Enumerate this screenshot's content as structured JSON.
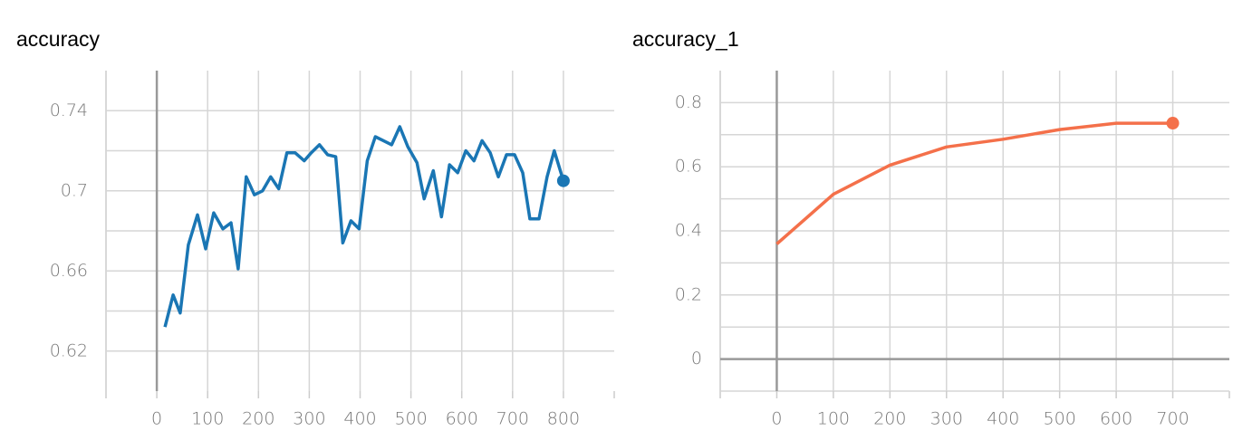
{
  "chart_data": [
    {
      "type": "line",
      "title": "accuracy",
      "color": "#1a76b4",
      "x": [
        16,
        32,
        46,
        62,
        80,
        96,
        112,
        130,
        146,
        160,
        176,
        192,
        208,
        224,
        240,
        256,
        272,
        290,
        304,
        320,
        336,
        352,
        366,
        382,
        398,
        414,
        430,
        446,
        462,
        478,
        494,
        512,
        526,
        544,
        560,
        576,
        592,
        608,
        624,
        640,
        656,
        672,
        688,
        704,
        720,
        734,
        752,
        768,
        782,
        800
      ],
      "values": [
        0.632,
        0.648,
        0.639,
        0.673,
        0.688,
        0.671,
        0.689,
        0.681,
        0.684,
        0.661,
        0.707,
        0.698,
        0.7,
        0.707,
        0.701,
        0.719,
        0.719,
        0.715,
        0.719,
        0.723,
        0.718,
        0.717,
        0.674,
        0.685,
        0.681,
        0.715,
        0.727,
        0.725,
        0.723,
        0.732,
        0.722,
        0.714,
        0.696,
        0.71,
        0.687,
        0.713,
        0.709,
        0.72,
        0.715,
        0.725,
        0.719,
        0.707,
        0.718,
        0.718,
        0.709,
        0.686,
        0.686,
        0.707,
        0.72,
        0.705
      ],
      "xlim": [
        -100,
        900
      ],
      "xticks": [
        0,
        100,
        200,
        300,
        400,
        500,
        600,
        700,
        800
      ],
      "ylim": [
        0.6,
        0.76
      ],
      "yticks": [
        0.62,
        0.66,
        0.7,
        0.74
      ],
      "y_minor_ticks": [
        0.64,
        0.68,
        0.72
      ],
      "grid": true
    },
    {
      "type": "line",
      "title": "accuracy_1",
      "color": "#f4704a",
      "x": [
        0,
        100,
        200,
        300,
        400,
        500,
        600,
        700
      ],
      "values": [
        0.359,
        0.514,
        0.605,
        0.662,
        0.686,
        0.716,
        0.736,
        0.736
      ],
      "xlim": [
        -100,
        800
      ],
      "xticks": [
        0,
        100,
        200,
        300,
        400,
        500,
        600,
        700
      ],
      "ylim": [
        -0.1,
        0.9
      ],
      "yticks": [
        0,
        0.2,
        0.4,
        0.6,
        0.8
      ],
      "y_minor_ticks": [
        -0.1,
        0.1,
        0.3,
        0.5,
        0.7
      ],
      "grid": true
    }
  ]
}
